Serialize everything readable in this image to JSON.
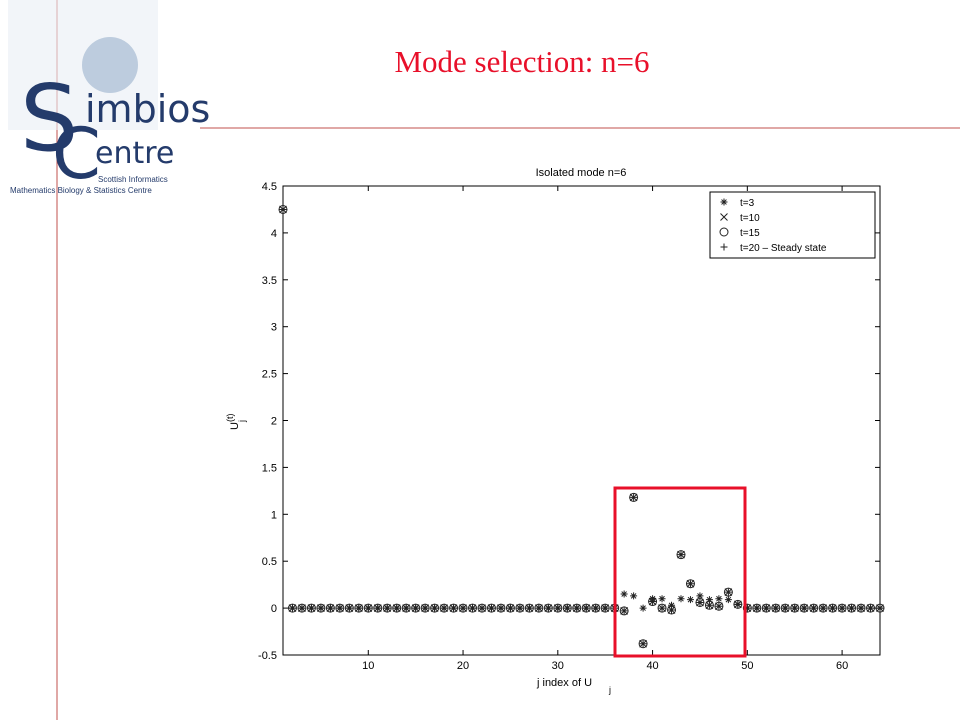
{
  "logo": {
    "letter_s": "S",
    "word_s": "imbios",
    "letter_c": "C",
    "word_c": "entre",
    "line1": "Scottish Informatics",
    "line2": "Mathematics Biology & Statistics Centre"
  },
  "slide_title": "Mode selection: n=6",
  "chart_data": {
    "type": "scatter",
    "title": "Isolated mode n=6",
    "ylabel": {
      "base": "U",
      "sub": "j",
      "sup": "(t)"
    },
    "xlabel": {
      "base": "j index of U",
      "sub": "j"
    },
    "x": [
      1,
      2,
      3,
      4,
      5,
      6,
      7,
      8,
      9,
      10,
      11,
      12,
      13,
      14,
      15,
      16,
      17,
      18,
      19,
      20,
      21,
      22,
      23,
      24,
      25,
      26,
      27,
      28,
      29,
      30,
      31,
      32,
      33,
      34,
      35,
      36,
      37,
      38,
      39,
      40,
      41,
      42,
      43,
      44,
      45,
      46,
      47,
      48,
      49,
      50,
      51,
      52,
      53,
      54,
      55,
      56,
      57,
      58,
      59,
      60,
      61,
      62,
      63,
      64
    ],
    "series": [
      {
        "name": "t=3",
        "marker": "star",
        "color": "#222222",
        "values": [
          4.25,
          0,
          0,
          0,
          0,
          0,
          0,
          0,
          0,
          0,
          0,
          0,
          0,
          0,
          0,
          0,
          0,
          0,
          0,
          0,
          0,
          0,
          0,
          0,
          0,
          0,
          0,
          0,
          0,
          0,
          0,
          0,
          0,
          0,
          0,
          0,
          0.15,
          0.13,
          0,
          0.1,
          0.1,
          0.03,
          0.1,
          0.09,
          0.13,
          0.09,
          0.1,
          0.09,
          0.04,
          0,
          0,
          0,
          0,
          0,
          0,
          0,
          0,
          0,
          0,
          0,
          0,
          0,
          0,
          0
        ]
      },
      {
        "name": "t=10",
        "marker": "x",
        "color": "#222222",
        "values": [
          4.25,
          0,
          0,
          0,
          0,
          0,
          0,
          0,
          0,
          0,
          0,
          0,
          0,
          0,
          0,
          0,
          0,
          0,
          0,
          0,
          0,
          0,
          0,
          0,
          0,
          0,
          0,
          0,
          0,
          0,
          0,
          0,
          0,
          0,
          0,
          0,
          -0.03,
          1.18,
          -0.38,
          0.07,
          0,
          -0.02,
          0.57,
          0.26,
          0.06,
          0.03,
          0.02,
          0.17,
          0.04,
          0,
          0,
          0,
          0,
          0,
          0,
          0,
          0,
          0,
          0,
          0,
          0,
          0,
          0,
          0
        ]
      },
      {
        "name": "t=15",
        "marker": "circle",
        "color": "#222222",
        "values": [
          4.25,
          0,
          0,
          0,
          0,
          0,
          0,
          0,
          0,
          0,
          0,
          0,
          0,
          0,
          0,
          0,
          0,
          0,
          0,
          0,
          0,
          0,
          0,
          0,
          0,
          0,
          0,
          0,
          0,
          0,
          0,
          0,
          0,
          0,
          0,
          0,
          -0.03,
          1.18,
          -0.38,
          0.07,
          0,
          -0.02,
          0.57,
          0.26,
          0.06,
          0.03,
          0.02,
          0.17,
          0.04,
          0,
          0,
          0,
          0,
          0,
          0,
          0,
          0,
          0,
          0,
          0,
          0,
          0,
          0,
          0
        ]
      },
      {
        "name": "t=20 – Steady state",
        "marker": "plus",
        "color": "#222222",
        "values": [
          4.25,
          0,
          0,
          0,
          0,
          0,
          0,
          0,
          0,
          0,
          0,
          0,
          0,
          0,
          0,
          0,
          0,
          0,
          0,
          0,
          0,
          0,
          0,
          0,
          0,
          0,
          0,
          0,
          0,
          0,
          0,
          0,
          0,
          0,
          0,
          0,
          -0.03,
          1.18,
          -0.38,
          0.07,
          0,
          -0.02,
          0.57,
          0.26,
          0.06,
          0.03,
          0.02,
          0.17,
          0.04,
          0,
          0,
          0,
          0,
          0,
          0,
          0,
          0,
          0,
          0,
          0,
          0,
          0,
          0,
          0
        ]
      }
    ],
    "xlim": [
      1,
      64
    ],
    "xticks": [
      10,
      20,
      30,
      40,
      50,
      60
    ],
    "ylim": [
      -0.5,
      4.5
    ],
    "yticks": [
      -0.5,
      0,
      0.5,
      1,
      1.5,
      2,
      2.5,
      3,
      3.5,
      4,
      4.5
    ],
    "legend": "upper right"
  }
}
